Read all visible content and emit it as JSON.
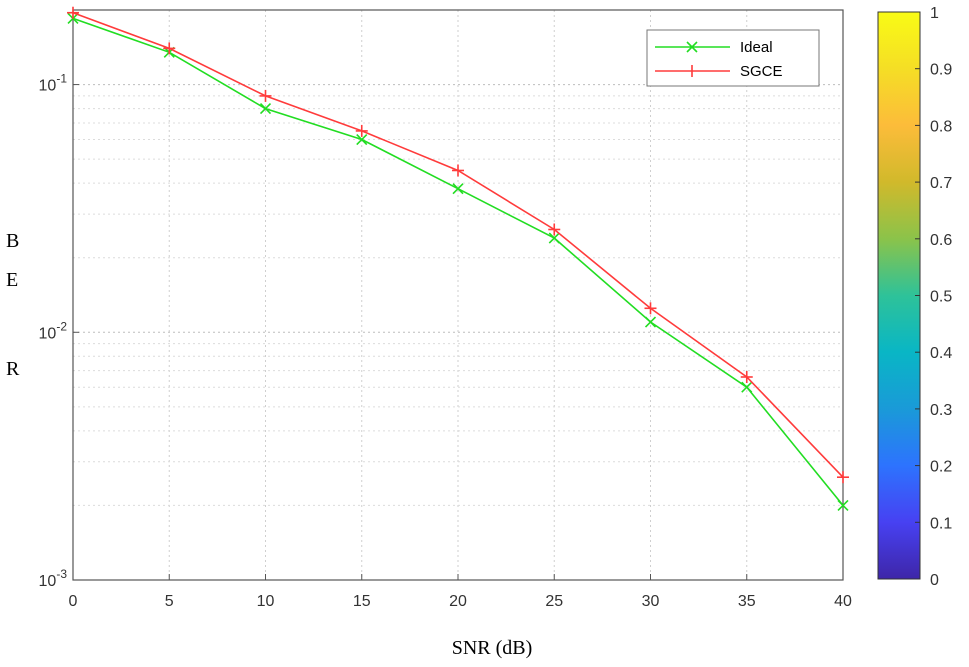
{
  "chart_data": {
    "type": "line",
    "xlabel": "SNR  (dB)",
    "ylabel": [
      "B",
      "E",
      "R"
    ],
    "x": [
      0,
      5,
      10,
      15,
      20,
      25,
      30,
      35,
      40
    ],
    "xlim": [
      0,
      40
    ],
    "ylim": [
      0.001,
      0.2
    ],
    "yscale": "log",
    "xticks": [
      "0",
      "5",
      "10",
      "15",
      "20",
      "25",
      "30",
      "35",
      "40"
    ],
    "yticks": [
      {
        "base": "10",
        "exp": "-1",
        "value": 0.1
      },
      {
        "base": "10",
        "exp": "-2",
        "value": 0.01
      },
      {
        "base": "10",
        "exp": "-3",
        "value": 0.001
      }
    ],
    "grid": true,
    "legend_position": "top-right",
    "series": [
      {
        "name": "Ideal",
        "color": "#22dd22",
        "marker": "x",
        "values": [
          0.185,
          0.135,
          0.08,
          0.06,
          0.038,
          0.024,
          0.011,
          0.006,
          0.002
        ]
      },
      {
        "name": "SGCE",
        "color": "#ff3b3b",
        "marker": "+",
        "values": [
          0.195,
          0.14,
          0.09,
          0.065,
          0.045,
          0.026,
          0.0125,
          0.0066,
          0.0026
        ]
      }
    ],
    "colorbar": {
      "ticks": [
        "0",
        "0.1",
        "0.2",
        "0.3",
        "0.4",
        "0.5",
        "0.6",
        "0.7",
        "0.8",
        "0.9",
        "1"
      ],
      "colors": [
        "#3e26a8",
        "#4741f2",
        "#2d73fe",
        "#1a9ad8",
        "#09b6c5",
        "#2ec299",
        "#8bc34a",
        "#d1b92b",
        "#fcbc3a",
        "#f5de25",
        "#f9fb15"
      ]
    }
  }
}
